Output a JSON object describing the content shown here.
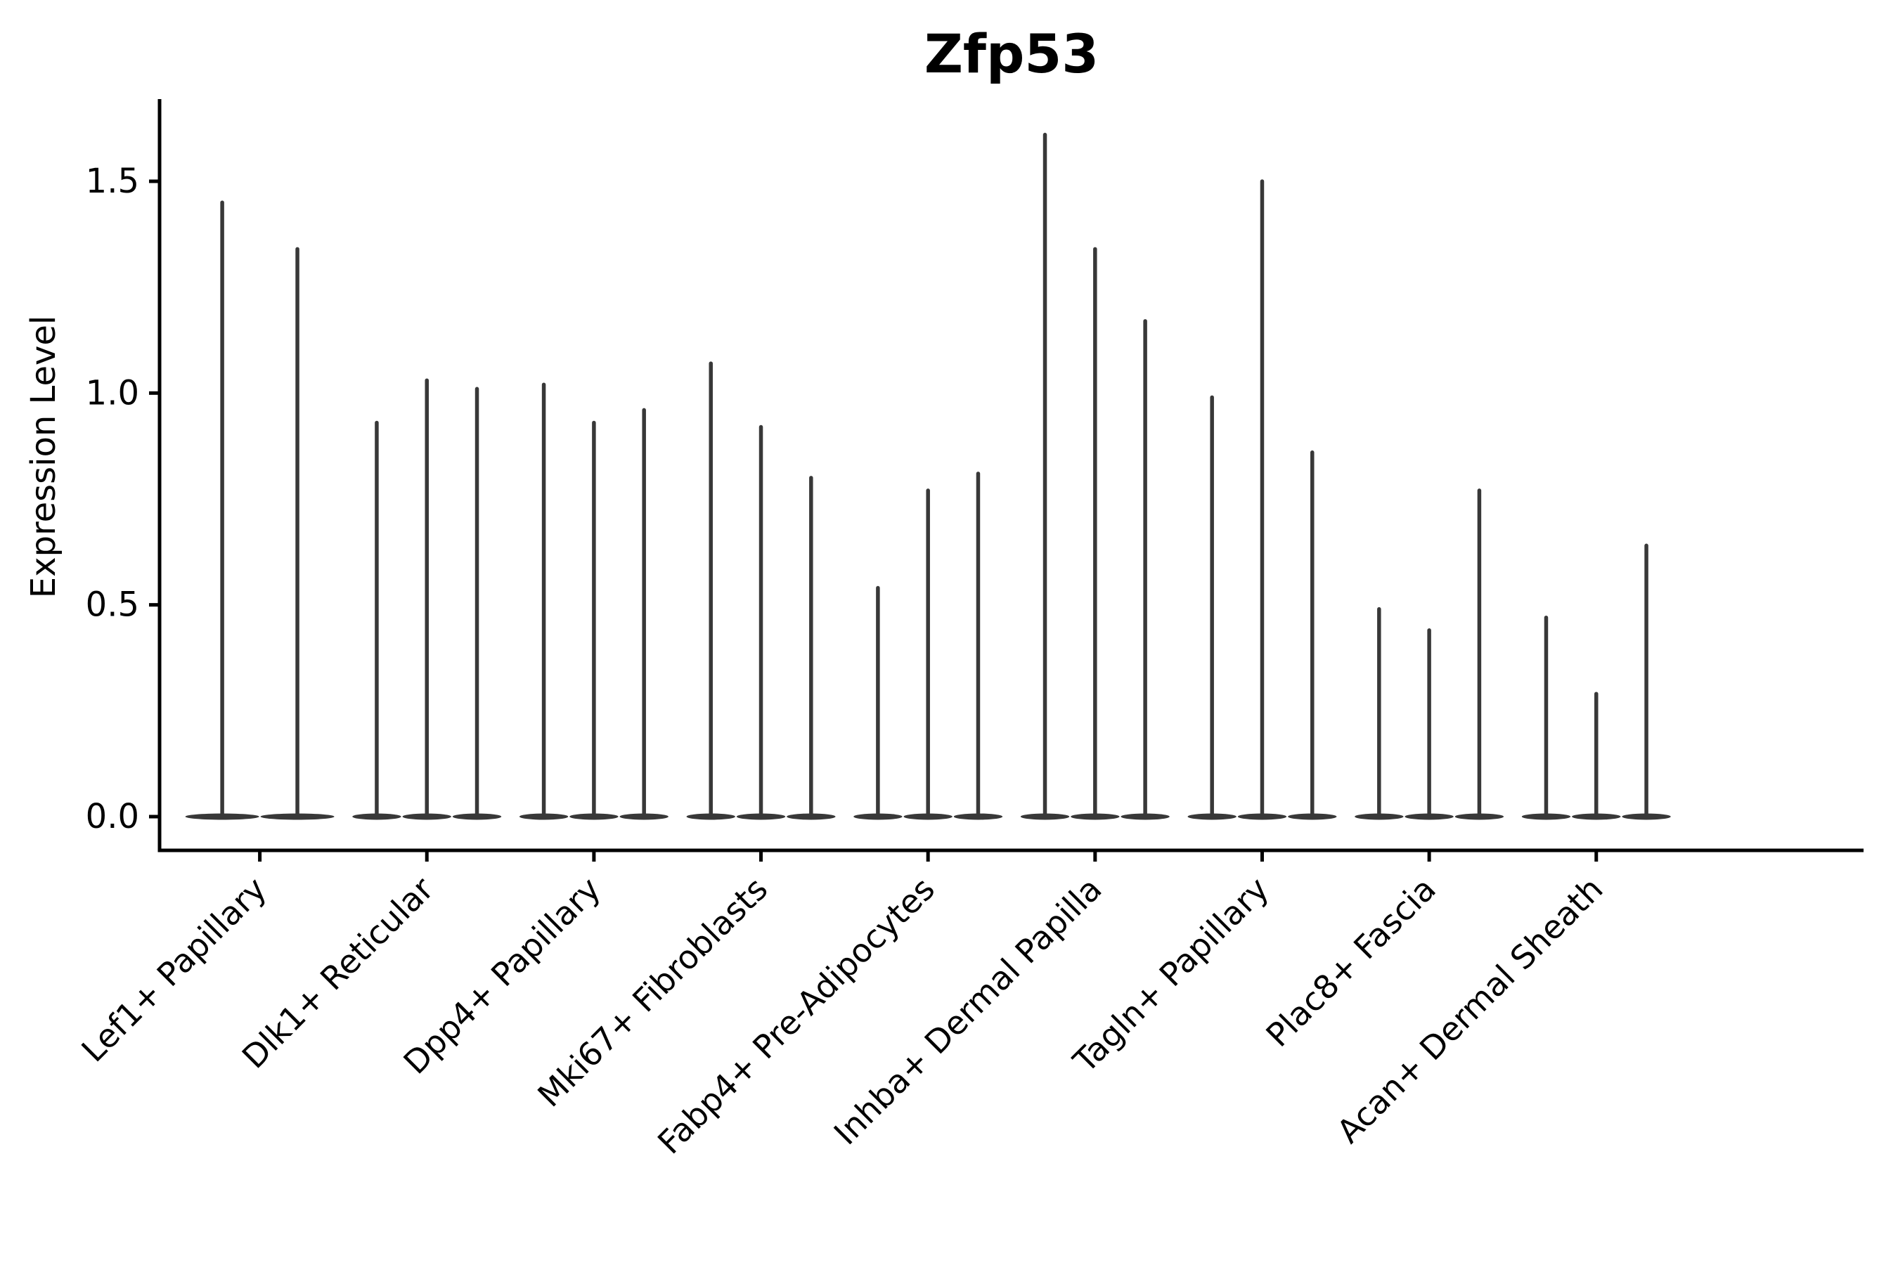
{
  "chart_data": {
    "type": "violin",
    "title": "Zfp53",
    "xlabel": "",
    "ylabel": "Expression Level",
    "yticks": [
      0.0,
      0.5,
      1.0,
      1.5
    ],
    "ylim": [
      -0.08,
      1.69
    ],
    "grid": false,
    "legend": "none",
    "description": "Stacked violin / expression plot; each category shows thin spike violins (max expression per violin) rising from a flat wide base at 0",
    "violin_color": "#383838",
    "axis_color": "#000000",
    "categories": [
      "Lef1+ Papillary",
      "Dlk1+ Reticular",
      "Dpp4+ Papillary",
      "Mki67+ Fibroblasts",
      "Fabp4+ Pre-Adipocytes",
      "Inhba+ Dermal Papilla",
      "Tagln+ Papillary",
      "Plac8+ Fascia",
      "Acan+ Dermal Sheath"
    ],
    "violins": [
      {
        "category": "Lef1+ Papillary",
        "maxima": [
          1.45,
          1.34
        ]
      },
      {
        "category": "Dlk1+ Reticular",
        "maxima": [
          0.93,
          1.03,
          1.01
        ]
      },
      {
        "category": "Dpp4+ Papillary",
        "maxima": [
          1.02,
          0.93,
          0.96
        ]
      },
      {
        "category": "Mki67+ Fibroblasts",
        "maxima": [
          1.07,
          0.92,
          0.8
        ]
      },
      {
        "category": "Fabp4+ Pre-Adipocytes",
        "maxima": [
          0.54,
          0.77,
          0.81
        ]
      },
      {
        "category": "Inhba+ Dermal Papilla",
        "maxima": [
          1.61,
          1.34,
          1.17
        ]
      },
      {
        "category": "Tagln+ Papillary",
        "maxima": [
          0.99,
          1.5,
          0.86
        ]
      },
      {
        "category": "Plac8+ Fascia",
        "maxima": [
          0.49,
          0.44,
          0.77
        ]
      },
      {
        "category": "Acan+ Dermal Sheath",
        "maxima": [
          0.47,
          0.29,
          0.64
        ]
      }
    ]
  }
}
